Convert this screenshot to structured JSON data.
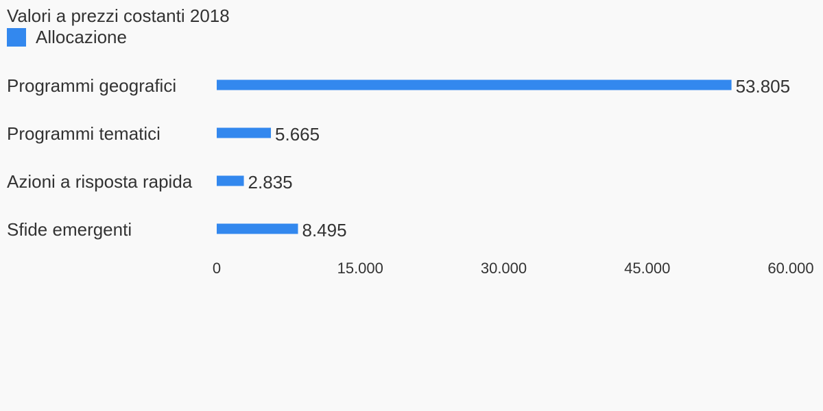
{
  "chart_data": {
    "type": "bar",
    "orientation": "horizontal",
    "title": "Valori a prezzi costanti 2018",
    "categories": [
      "Programmi geografici",
      "Programmi tematici",
      "Azioni a risposta rapida",
      "Sfide emergenti"
    ],
    "series": [
      {
        "name": "Allocazione",
        "values": [
          53805,
          5665,
          2835,
          8495
        ],
        "value_labels": [
          "53.805",
          "5.665",
          "2.835",
          "8.495"
        ],
        "color": "#3388ee"
      }
    ],
    "xlim": [
      0,
      60000
    ],
    "ticks": [
      0,
      15000,
      30000,
      45000,
      60000
    ],
    "tick_labels": [
      "0",
      "15.000",
      "30.000",
      "45.000",
      "60.000"
    ],
    "grid": false,
    "legend_position": "top-left"
  }
}
